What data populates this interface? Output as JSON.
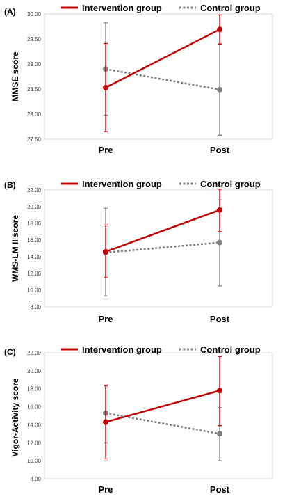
{
  "chart_data": [
    {
      "type": "line",
      "panel_label": "(A)",
      "ylabel": "MMSE score",
      "categories": [
        "Pre",
        "Post"
      ],
      "ylim": [
        27.5,
        30.0
      ],
      "yticks": [
        "27.50",
        "28.00",
        "28.50",
        "29.00",
        "29.50",
        "30.00"
      ],
      "legend_position": "top",
      "series": [
        {
          "name": "Intervention group",
          "color": "#c00000",
          "style": "solid",
          "values": [
            28.53,
            29.69
          ],
          "err_low": [
            27.65,
            29.4
          ],
          "err_high": [
            29.41,
            29.98
          ]
        },
        {
          "name": "Control group",
          "color": "#7f7f7f",
          "style": "dotted",
          "values": [
            28.9,
            28.49
          ],
          "err_low": [
            27.98,
            27.58
          ],
          "err_high": [
            29.82,
            29.4
          ]
        }
      ]
    },
    {
      "type": "line",
      "panel_label": "(B)",
      "ylabel": "WMS-LM II score",
      "categories": [
        "Pre",
        "Post"
      ],
      "ylim": [
        8.0,
        22.0
      ],
      "yticks": [
        "8.00",
        "10.00",
        "12.00",
        "14.00",
        "16.00",
        "18.00",
        "20.00",
        "22.00"
      ],
      "legend_position": "top",
      "series": [
        {
          "name": "Intervention group",
          "color": "#c00000",
          "style": "solid",
          "values": [
            14.6,
            19.6
          ],
          "err_low": [
            11.5,
            17.0
          ],
          "err_high": [
            17.8,
            22.1
          ]
        },
        {
          "name": "Control group",
          "color": "#7f7f7f",
          "style": "dotted",
          "values": [
            14.5,
            15.7
          ],
          "err_low": [
            9.3,
            10.5
          ],
          "err_high": [
            19.8,
            20.8
          ]
        }
      ]
    },
    {
      "type": "line",
      "panel_label": "(C)",
      "ylabel": "Vigor-Activity score",
      "categories": [
        "Pre",
        "Post"
      ],
      "ylim": [
        8.0,
        22.0
      ],
      "yticks": [
        "8.00",
        "10.00",
        "12.00",
        "14.00",
        "16.00",
        "18.00",
        "20.00",
        "22.00"
      ],
      "legend_position": "top",
      "series": [
        {
          "name": "Intervention group",
          "color": "#c00000",
          "style": "solid",
          "values": [
            14.3,
            17.8
          ],
          "err_low": [
            10.2,
            13.9
          ],
          "err_high": [
            18.4,
            21.6
          ]
        },
        {
          "name": "Control group",
          "color": "#7f7f7f",
          "style": "dotted",
          "values": [
            15.3,
            13.0
          ],
          "err_low": [
            12.0,
            10.0
          ],
          "err_high": [
            18.3,
            15.9
          ]
        }
      ]
    }
  ]
}
